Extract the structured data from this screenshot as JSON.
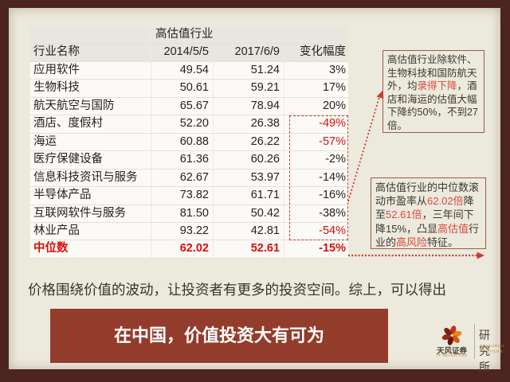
{
  "table": {
    "title": "高估值行业",
    "headers": [
      "行业名称",
      "2014/5/5",
      "2017/6/9",
      "变化幅度"
    ],
    "rows": [
      {
        "name": "应用软件",
        "pe_2014": "49.54",
        "pe_2017": "51.24",
        "change": "3%",
        "change_red": false,
        "row_red": false
      },
      {
        "name": "生物科技",
        "pe_2014": "50.61",
        "pe_2017": "59.21",
        "change": "17%",
        "change_red": false,
        "row_red": false
      },
      {
        "name": "航天航空与国防",
        "pe_2014": "65.67",
        "pe_2017": "78.94",
        "change": "20%",
        "change_red": false,
        "row_red": false
      },
      {
        "name": "酒店、度假村",
        "pe_2014": "52.20",
        "pe_2017": "26.38",
        "change": "-49%",
        "change_red": true,
        "row_red": false
      },
      {
        "name": "海运",
        "pe_2014": "60.88",
        "pe_2017": "26.22",
        "change": "-57%",
        "change_red": true,
        "row_red": false
      },
      {
        "name": "医疗保健设备",
        "pe_2014": "61.36",
        "pe_2017": "60.26",
        "change": "-2%",
        "change_red": false,
        "row_red": false
      },
      {
        "name": "信息科技资讯与服务",
        "pe_2014": "62.67",
        "pe_2017": "53.97",
        "change": "-14%",
        "change_red": false,
        "row_red": false
      },
      {
        "name": "半导体产品",
        "pe_2014": "73.82",
        "pe_2017": "61.71",
        "change": "-16%",
        "change_red": false,
        "row_red": false
      },
      {
        "name": "互联网软件与服务",
        "pe_2014": "81.50",
        "pe_2017": "50.42",
        "change": "-38%",
        "change_red": false,
        "row_red": false
      },
      {
        "name": "林业产品",
        "pe_2014": "93.22",
        "pe_2017": "42.81",
        "change": "-54%",
        "change_red": true,
        "row_red": false
      },
      {
        "name": "中位数",
        "pe_2014": "62.02",
        "pe_2017": "52.61",
        "change": "-15%",
        "change_red": true,
        "row_red": true
      }
    ]
  },
  "callouts": {
    "box1_segments": [
      {
        "text": "高估值行业除软件、生物科技和国防航天外，均",
        "red": false
      },
      {
        "text": "录得下降",
        "red": true
      },
      {
        "text": "，酒店和海运的估值大幅下降约50%，不到27倍。",
        "red": false
      }
    ],
    "box2_segments": [
      {
        "text": "高估值行业的中位数滚动市盈率从",
        "red": false
      },
      {
        "text": "62.02倍",
        "red": true
      },
      {
        "text": "降至",
        "red": false
      },
      {
        "text": "52.61倍",
        "red": true
      },
      {
        "text": "，三年间下降15%，凸显",
        "red": false
      },
      {
        "text": "高估值",
        "red": true
      },
      {
        "text": "行业的",
        "red": false
      },
      {
        "text": "高风险",
        "red": true
      },
      {
        "text": "特征。",
        "red": false
      }
    ]
  },
  "summary_text": "价格围绕价值的波动，让投资者有更多的投资空间。综上，可以得出",
  "banner_text": "在中国，价值投资大有可为",
  "logo": {
    "brand": "天风证券",
    "brand_sub": "TF SECURITIES",
    "unit": "研究所",
    "unit_sub": "RESEARCH INSTITUTE"
  },
  "colors": {
    "frame": "#4c2520",
    "background": "#ece9dd",
    "banner": "#943c2b",
    "table_red": "#d90f0b",
    "dashed_accent": "#cf3a30",
    "callout_border": "#a05a49"
  }
}
